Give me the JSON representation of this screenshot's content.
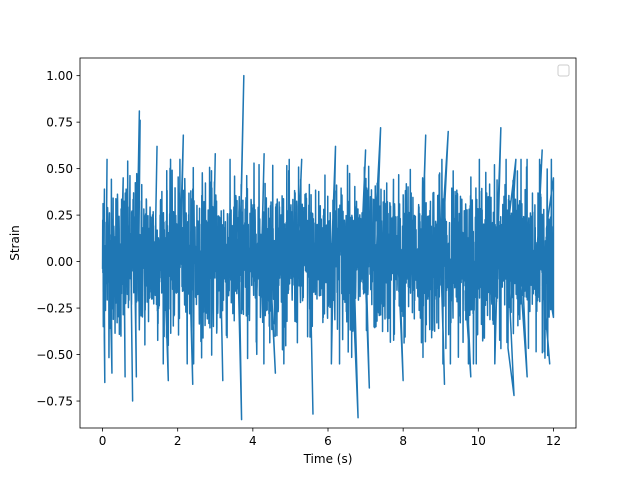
{
  "chart_data": {
    "type": "line",
    "title": "",
    "xlabel": "Time (s)",
    "ylabel": "Strain",
    "xlim": [
      -0.6,
      12.6
    ],
    "ylim": [
      -0.895,
      1.095
    ],
    "x_ticks": [
      0,
      2,
      4,
      6,
      8,
      10,
      12
    ],
    "x_tick_labels": [
      "0",
      "2",
      "4",
      "6",
      "8",
      "10",
      "12"
    ],
    "y_ticks": [
      -0.75,
      -0.5,
      -0.25,
      0.0,
      0.25,
      0.5,
      0.75,
      1.0
    ],
    "y_tick_labels": [
      "−0.75",
      "−0.50",
      "−0.25",
      "0.00",
      "0.25",
      "0.50",
      "0.75",
      "1.00"
    ],
    "grid": false,
    "legend": {
      "placement": "top-right",
      "entries": []
    },
    "series": [
      {
        "color": "#1f77b4",
        "description_note_free": true,
        "peaks": [
          {
            "x": 0.02,
            "y": 0.27
          },
          {
            "x": 0.02,
            "y": -0.35
          },
          {
            "x": 0.05,
            "y": 0.39
          },
          {
            "x": 0.06,
            "y": -0.65
          },
          {
            "x": 0.12,
            "y": 0.55
          },
          {
            "x": 0.25,
            "y": -0.6
          },
          {
            "x": 0.55,
            "y": 0.45
          },
          {
            "x": 0.6,
            "y": -0.62
          },
          {
            "x": 0.98,
            "y": 0.81
          },
          {
            "x": 0.9,
            "y": -0.62
          },
          {
            "x": 1.0,
            "y": 0.76
          },
          {
            "x": 0.8,
            "y": -0.75
          },
          {
            "x": 1.45,
            "y": 0.62
          },
          {
            "x": 1.75,
            "y": -0.64
          },
          {
            "x": 2.15,
            "y": 0.68
          },
          {
            "x": 2.4,
            "y": -0.66
          },
          {
            "x": 3.0,
            "y": 0.58
          },
          {
            "x": 3.2,
            "y": -0.64
          },
          {
            "x": 3.76,
            "y": 1.0
          },
          {
            "x": 3.7,
            "y": -0.85
          },
          {
            "x": 4.3,
            "y": 0.58
          },
          {
            "x": 4.6,
            "y": -0.6
          },
          {
            "x": 5.3,
            "y": 0.55
          },
          {
            "x": 5.6,
            "y": -0.82
          },
          {
            "x": 6.2,
            "y": 0.62
          },
          {
            "x": 6.8,
            "y": -0.84
          },
          {
            "x": 7.0,
            "y": 0.6
          },
          {
            "x": 7.1,
            "y": -0.68
          },
          {
            "x": 7.4,
            "y": 0.72
          },
          {
            "x": 8.0,
            "y": -0.64
          },
          {
            "x": 8.6,
            "y": 0.68
          },
          {
            "x": 9.1,
            "y": -0.66
          },
          {
            "x": 9.2,
            "y": 0.7
          },
          {
            "x": 9.8,
            "y": -0.62
          },
          {
            "x": 10.6,
            "y": 0.72
          },
          {
            "x": 10.95,
            "y": -0.72
          },
          {
            "x": 11.0,
            "y": 0.55
          },
          {
            "x": 11.3,
            "y": -0.62
          },
          {
            "x": 11.7,
            "y": 0.6
          },
          {
            "x": 11.9,
            "y": -0.55
          },
          {
            "x": 12.0,
            "y": 0.45
          },
          {
            "x": 12.0,
            "y": -0.3
          }
        ],
        "x_range": [
          0.0,
          12.0
        ],
        "typical_band": [
          -0.35,
          0.4
        ]
      }
    ]
  }
}
